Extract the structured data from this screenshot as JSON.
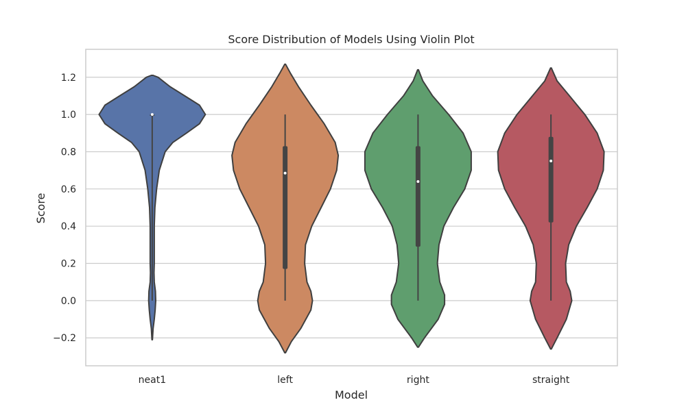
{
  "chart_data": {
    "type": "violin",
    "title": "Score Distribution of Models Using Violin Plot",
    "xlabel": "Model",
    "ylabel": "Score",
    "ylim": [
      -0.35,
      1.35
    ],
    "yticks": [
      -0.2,
      0.0,
      0.2,
      0.4,
      0.6,
      0.8,
      1.0,
      1.2
    ],
    "ytick_labels": [
      "−0.2",
      "0.0",
      "0.2",
      "0.4",
      "0.6",
      "0.8",
      "1.0",
      "1.2"
    ],
    "grid": true,
    "categories": [
      "neat1",
      "left",
      "right",
      "straight"
    ],
    "series": [
      {
        "category": "neat1",
        "color": "#5874a8",
        "min": 0.0,
        "q1": 1.0,
        "median": 1.0,
        "q3": 1.0,
        "max": 1.0,
        "kde_range": [
          -0.21,
          1.21
        ],
        "density": [
          [
            -0.21,
            0.004
          ],
          [
            -0.15,
            0.015
          ],
          [
            -0.1,
            0.035
          ],
          [
            -0.05,
            0.05
          ],
          [
            0.0,
            0.06
          ],
          [
            0.05,
            0.055
          ],
          [
            0.1,
            0.035
          ],
          [
            0.15,
            0.03
          ],
          [
            0.2,
            0.035
          ],
          [
            0.3,
            0.035
          ],
          [
            0.4,
            0.035
          ],
          [
            0.5,
            0.045
          ],
          [
            0.6,
            0.075
          ],
          [
            0.7,
            0.12
          ],
          [
            0.8,
            0.22
          ],
          [
            0.85,
            0.35
          ],
          [
            0.9,
            0.58
          ],
          [
            0.95,
            0.8
          ],
          [
            1.0,
            0.9
          ],
          [
            1.05,
            0.8
          ],
          [
            1.1,
            0.55
          ],
          [
            1.15,
            0.3
          ],
          [
            1.2,
            0.1
          ],
          [
            1.21,
            0.015
          ]
        ]
      },
      {
        "category": "left",
        "color": "#cc8962",
        "min": 0.0,
        "q1": 0.17,
        "median": 0.685,
        "q3": 0.83,
        "max": 1.0,
        "kde_range": [
          -0.28,
          1.27
        ],
        "density": [
          [
            -0.28,
            0.005
          ],
          [
            -0.22,
            0.08
          ],
          [
            -0.15,
            0.2
          ],
          [
            -0.05,
            0.33
          ],
          [
            0.0,
            0.35
          ],
          [
            0.05,
            0.33
          ],
          [
            0.1,
            0.28
          ],
          [
            0.2,
            0.25
          ],
          [
            0.3,
            0.26
          ],
          [
            0.4,
            0.34
          ],
          [
            0.5,
            0.46
          ],
          [
            0.6,
            0.58
          ],
          [
            0.7,
            0.66
          ],
          [
            0.78,
            0.68
          ],
          [
            0.85,
            0.64
          ],
          [
            0.95,
            0.5
          ],
          [
            1.05,
            0.33
          ],
          [
            1.15,
            0.17
          ],
          [
            1.22,
            0.07
          ],
          [
            1.27,
            0.005
          ]
        ]
      },
      {
        "category": "right",
        "color": "#5f9e6e",
        "min": 0.0,
        "q1": 0.29,
        "median": 0.64,
        "q3": 0.83,
        "max": 1.0,
        "kde_range": [
          -0.25,
          1.24
        ],
        "density": [
          [
            -0.25,
            0.005
          ],
          [
            -0.2,
            0.08
          ],
          [
            -0.1,
            0.25
          ],
          [
            -0.02,
            0.33
          ],
          [
            0.03,
            0.33
          ],
          [
            0.1,
            0.27
          ],
          [
            0.2,
            0.24
          ],
          [
            0.3,
            0.26
          ],
          [
            0.4,
            0.32
          ],
          [
            0.5,
            0.44
          ],
          [
            0.6,
            0.58
          ],
          [
            0.7,
            0.66
          ],
          [
            0.8,
            0.66
          ],
          [
            0.9,
            0.56
          ],
          [
            1.0,
            0.38
          ],
          [
            1.1,
            0.18
          ],
          [
            1.18,
            0.06
          ],
          [
            1.24,
            0.005
          ]
        ]
      },
      {
        "category": "straight",
        "color": "#b65962",
        "min": 0.0,
        "q1": 0.42,
        "median": 0.75,
        "q3": 0.88,
        "max": 1.0,
        "kde_range": [
          -0.26,
          1.25
        ],
        "density": [
          [
            -0.26,
            0.005
          ],
          [
            -0.2,
            0.08
          ],
          [
            -0.1,
            0.2
          ],
          [
            0.0,
            0.27
          ],
          [
            0.05,
            0.25
          ],
          [
            0.1,
            0.2
          ],
          [
            0.2,
            0.19
          ],
          [
            0.3,
            0.23
          ],
          [
            0.4,
            0.33
          ],
          [
            0.5,
            0.47
          ],
          [
            0.6,
            0.6
          ],
          [
            0.7,
            0.68
          ],
          [
            0.8,
            0.69
          ],
          [
            0.9,
            0.6
          ],
          [
            1.0,
            0.44
          ],
          [
            1.1,
            0.24
          ],
          [
            1.18,
            0.08
          ],
          [
            1.25,
            0.005
          ]
        ]
      }
    ]
  }
}
